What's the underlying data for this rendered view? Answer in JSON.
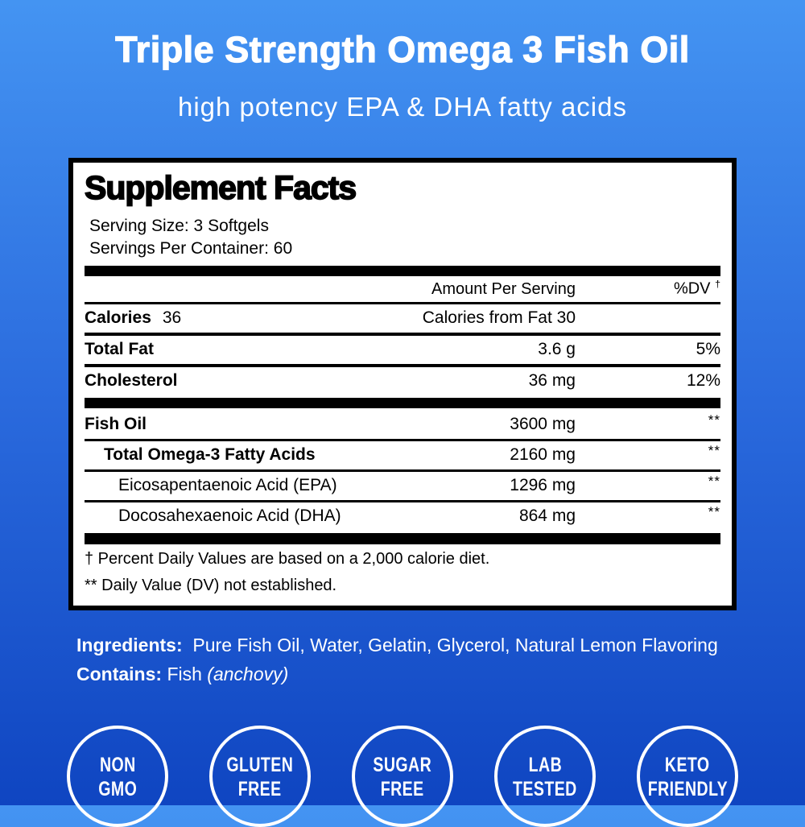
{
  "colors": {
    "bg-top": "#4494f2",
    "bg-mid": "#2a6add",
    "bg-bottom": "#0f45c1",
    "panel-bg": "#ffffff",
    "ink": "#000000",
    "text": "#ffffff"
  },
  "header": {
    "title": "Triple Strength Omega 3 Fish Oil",
    "subtitle": "high potency EPA & DHA fatty acids"
  },
  "panel": {
    "title": "Supplement Facts",
    "serving_size": "Serving Size: 3 Softgels",
    "servings_per_container": "Servings Per Container: 60",
    "columns": {
      "amount": "Amount Per Serving",
      "dv": "%DV",
      "dv_mark": "†"
    },
    "calories": {
      "label": "Calories",
      "value": "36",
      "from_fat": "Calories from Fat 30"
    },
    "rows": [
      {
        "name": "Total Fat",
        "amount": "3.6 g",
        "dv": "5%"
      },
      {
        "name": "Cholesterol",
        "amount": "36 mg",
        "dv": "12%"
      },
      {
        "name": "Fish Oil",
        "amount": "3600 mg",
        "dv": "**"
      },
      {
        "name": "Total Omega-3 Fatty Acids",
        "amount": "2160 mg",
        "dv": "**"
      },
      {
        "name": "Eicosapentaenoic Acid (EPA)",
        "amount": "1296 mg",
        "dv": "**"
      },
      {
        "name": "Docosahexaenoic Acid (DHA)",
        "amount": "864 mg",
        "dv": "**"
      }
    ],
    "footnotes": [
      "† Percent Daily Values are based on a 2,000 calorie diet.",
      "** Daily Value (DV) not established."
    ]
  },
  "ingredients": {
    "label": "Ingredients:",
    "text": "Pure Fish Oil, Water, Gelatin, Glycerol, Natural Lemon Flavoring"
  },
  "contains": {
    "label": "Contains:",
    "text": "Fish",
    "note": "(anchovy)"
  },
  "badges": [
    {
      "line1": "NON",
      "line2": "GMO"
    },
    {
      "line1": "GLUTEN",
      "line2": "FREE"
    },
    {
      "line1": "SUGAR",
      "line2": "FREE"
    },
    {
      "line1": "LAB",
      "line2": "TESTED"
    },
    {
      "line1": "KETO",
      "line2": "FRIENDLY"
    }
  ]
}
